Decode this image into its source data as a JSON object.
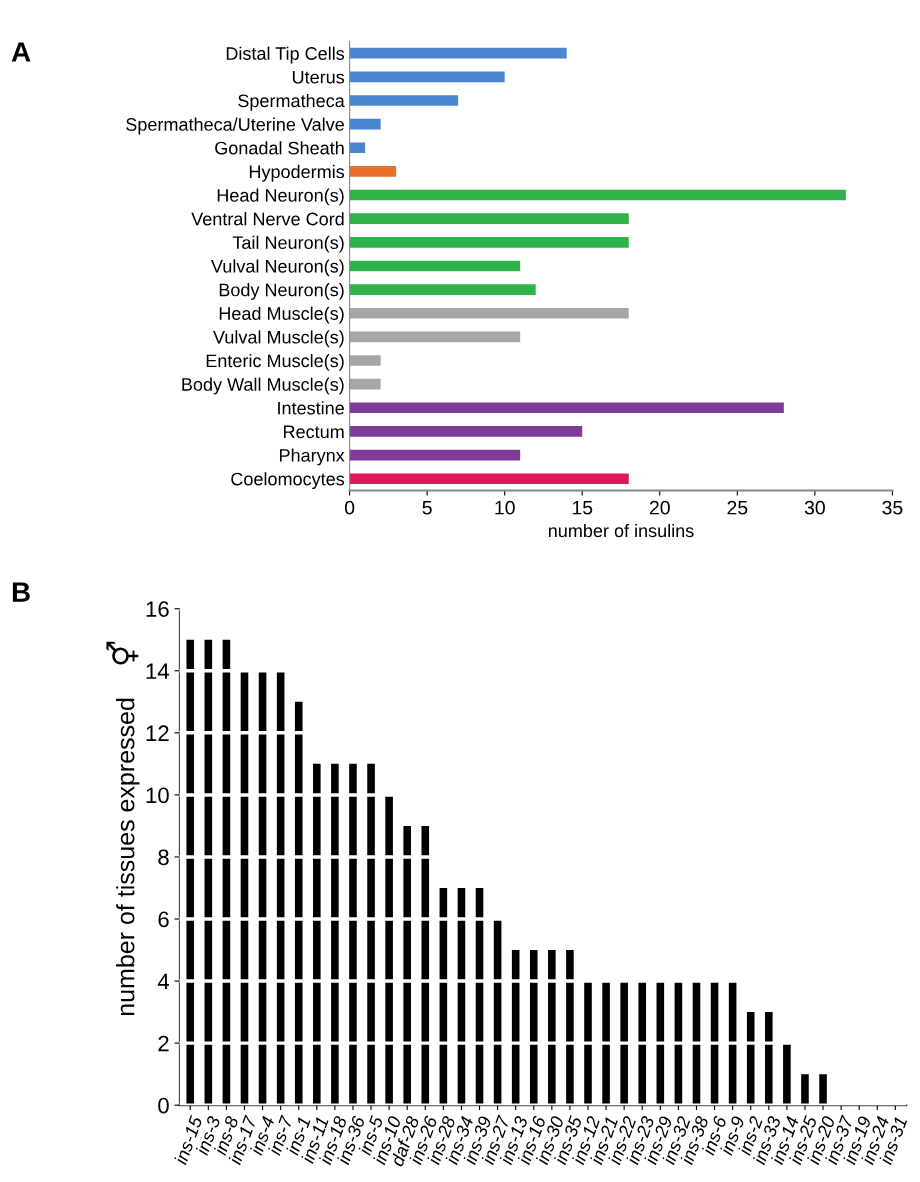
{
  "chart_data": [
    {
      "type": "bar",
      "title": "A",
      "orientation": "horizontal",
      "categories": [
        "Distal Tip Cells",
        "Uterus",
        "Spermatheca",
        "Spermatheca/Uterine Valve",
        "Gonadal Sheath",
        "Hypodermis",
        "Head Neuron(s)",
        "Ventral Nerve Cord",
        "Tail Neuron(s)",
        "Vulval Neuron(s)",
        "Body Neuron(s)",
        "Head Muscle(s)",
        "Vulval Muscle(s)",
        "Enteric Muscle(s)",
        "Body Wall Muscle(s)",
        "Intestine",
        "Rectum",
        "Pharynx",
        "Coelomocytes"
      ],
      "values": [
        14,
        10,
        7,
        2,
        1,
        3,
        32,
        18,
        18,
        11,
        12,
        18,
        11,
        2,
        2,
        28,
        15,
        11,
        18
      ],
      "colors": [
        "#4a86cf",
        "#4a86cf",
        "#4a86cf",
        "#4a86cf",
        "#4a86cf",
        "#e8702a",
        "#2db34a",
        "#2db34a",
        "#2db34a",
        "#2db34a",
        "#2db34a",
        "#a6a6a6",
        "#a6a6a6",
        "#a6a6a6",
        "#a6a6a6",
        "#7e3c98",
        "#7e3c98",
        "#7e3c98",
        "#e0185a"
      ],
      "xlabel": "number of insulins",
      "xlim": [
        0,
        35
      ],
      "xticks": [
        0,
        5,
        10,
        15,
        20,
        25,
        30,
        35
      ],
      "grid": false
    },
    {
      "type": "bar",
      "title": "B",
      "categories": [
        "ins-15",
        "ins-3",
        "ins-8",
        "ins-17",
        "ins-4",
        "ins-7",
        "ins-1",
        "ins-11",
        "ins-18",
        "ins-36",
        "ins-5",
        "ins-10",
        "daf-28",
        "ins-26",
        "ins-28",
        "ins-34",
        "ins-39",
        "ins-27",
        "ins-13",
        "ins-16",
        "ins-30",
        "ins-35",
        "ins-12",
        "ins-21",
        "ins-22",
        "ins-23",
        "ins-29",
        "ins-32",
        "ins-38",
        "ins-6",
        "ins-9",
        "ins-2",
        "ins-33",
        "ins-14",
        "ins-25",
        "ins-20",
        "ins-37",
        "ins-19",
        "ins-24",
        "ins-31"
      ],
      "values": [
        15,
        15,
        15,
        14,
        14,
        14,
        13,
        11,
        11,
        11,
        11,
        10,
        9,
        9,
        7,
        7,
        7,
        6,
        5,
        5,
        5,
        5,
        4,
        4,
        4,
        4,
        4,
        4,
        4,
        4,
        4,
        3,
        3,
        2,
        1,
        1,
        0,
        0,
        0,
        0
      ],
      "color": "#000000",
      "ylabel": "number of tissues expressed",
      "annotations": [
        "⚥"
      ],
      "ylim": [
        0,
        16
      ],
      "yticks": [
        0,
        2,
        4,
        6,
        8,
        10,
        12,
        14,
        16
      ],
      "grid": "y"
    }
  ]
}
